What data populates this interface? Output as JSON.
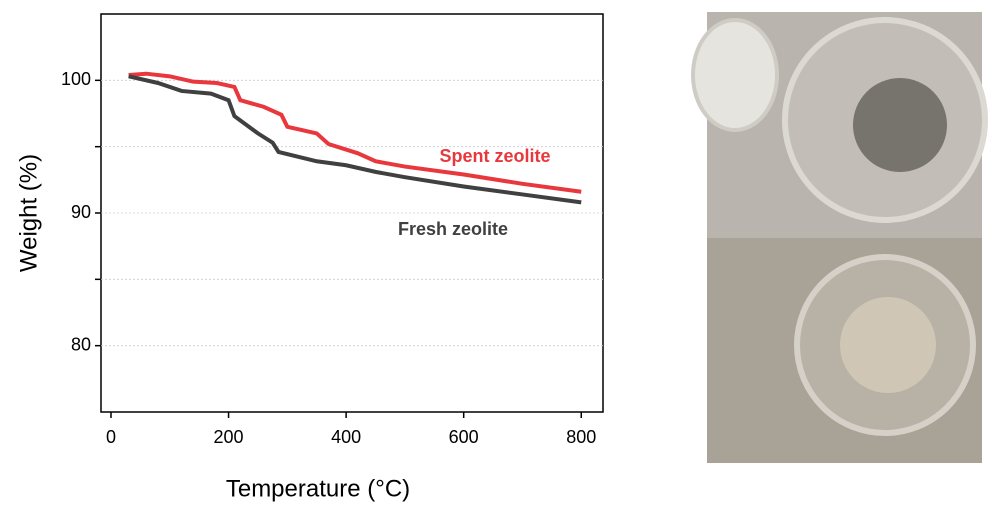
{
  "chart_data": {
    "type": "line",
    "xlabel": "Temperature (°C)",
    "ylabel": "Weight (%)",
    "xlim": [
      -17,
      837
    ],
    "xticks": [
      0,
      200,
      400,
      600,
      800
    ],
    "ylim": [
      75,
      105
    ],
    "yticks": [
      80,
      90,
      100
    ],
    "yminorticks": [
      85,
      95
    ],
    "grid": true,
    "series": [
      {
        "name": "Spent zeolite",
        "color": "#e8383d",
        "x": [
          30,
          60,
          100,
          140,
          180,
          210,
          220,
          260,
          290,
          300,
          350,
          370,
          420,
          450,
          500,
          600,
          700,
          800
        ],
        "values": [
          100.4,
          100.5,
          100.3,
          99.9,
          99.8,
          99.5,
          98.5,
          98.0,
          97.4,
          96.5,
          96.0,
          95.2,
          94.5,
          93.9,
          93.5,
          92.9,
          92.2,
          91.6
        ]
      },
      {
        "name": "Fresh zeolite",
        "color": "#404040",
        "x": [
          30,
          80,
          120,
          170,
          200,
          210,
          250,
          275,
          285,
          350,
          400,
          450,
          500,
          600,
          700,
          800
        ],
        "values": [
          100.3,
          99.8,
          99.2,
          99.0,
          98.5,
          97.3,
          96.0,
          95.3,
          94.6,
          93.9,
          93.6,
          93.1,
          92.7,
          92.0,
          91.4,
          90.8
        ]
      }
    ]
  }
}
